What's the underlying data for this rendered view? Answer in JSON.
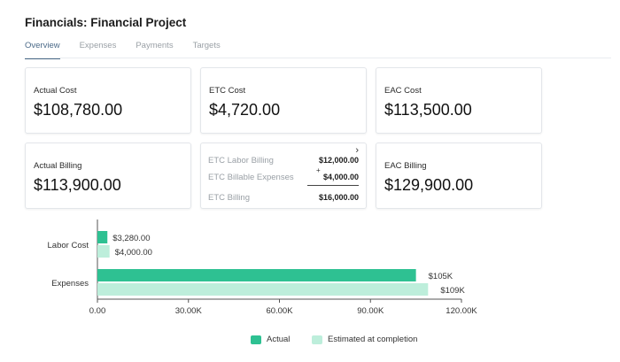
{
  "header": {
    "title": "Financials: Financial Project"
  },
  "tabs": [
    {
      "label": "Overview",
      "active": true
    },
    {
      "label": "Expenses",
      "active": false
    },
    {
      "label": "Payments",
      "active": false
    },
    {
      "label": "Targets",
      "active": false
    }
  ],
  "cards": {
    "actual_cost": {
      "label": "Actual Cost",
      "value": "$108,780.00"
    },
    "etc_cost": {
      "label": "ETC Cost",
      "value": "$4,720.00"
    },
    "eac_cost": {
      "label": "EAC Cost",
      "value": "$113,500.00"
    },
    "actual_billing": {
      "label": "Actual Billing",
      "value": "$113,900.00"
    },
    "eac_billing": {
      "label": "EAC Billing",
      "value": "$129,900.00"
    }
  },
  "etc_breakdown": {
    "labor_label": "ETC  Labor Billing",
    "labor_value": "$12,000.00",
    "plus": "+",
    "billable_label": "ETC Billable Expenses",
    "billable_value": "$4,000.00",
    "total_label": "ETC Billing",
    "total_value": "$16,000.00"
  },
  "colors": {
    "actual": "#2ec192",
    "estimated": "#bdeedb",
    "tab_active": "#4b6a88"
  },
  "chart_data": {
    "type": "bar",
    "orientation": "horizontal",
    "categories": [
      "Labor Cost",
      "Expenses"
    ],
    "series": [
      {
        "name": "Actual",
        "values": [
          3280,
          105000
        ],
        "labels": [
          "$3,280.00",
          "$105K"
        ]
      },
      {
        "name": "Estimated at completion",
        "values": [
          4000,
          109000
        ],
        "labels": [
          "$4,000.00",
          "$109K"
        ]
      }
    ],
    "xlim": [
      0,
      120000
    ],
    "xticks": [
      0,
      30000,
      60000,
      90000,
      120000
    ],
    "xtick_labels": [
      "0.00",
      "30.00K",
      "60.00K",
      "90.00K",
      "120.00K"
    ],
    "legend": "bottom"
  }
}
